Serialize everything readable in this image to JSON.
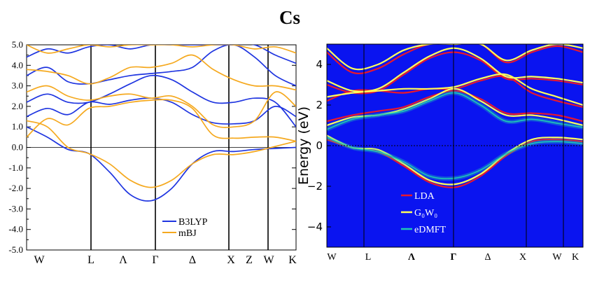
{
  "title": "Cs",
  "chart_data": [
    {
      "type": "line",
      "ylim": [
        -5.0,
        5.0
      ],
      "y_ticks": [
        "5.0",
        "4.0",
        "3.0",
        "2.0",
        "1.0",
        "0.0",
        "-1.0",
        "-2.0",
        "-3.0",
        "-4.0",
        "-5.0"
      ],
      "k_labels": [
        "W",
        "L",
        "Λ",
        "Γ",
        "Δ",
        "X",
        "Z",
        "W",
        "K"
      ],
      "fermi_level": 0.0,
      "legend": [
        {
          "name": "B3LYP",
          "color": "#1f35e0"
        },
        {
          "name": "mBJ",
          "color": "#f5a91f"
        }
      ],
      "series": [
        {
          "name": "B3LYP",
          "color": "#1f35e0",
          "bands": [
            [
              1.0,
              0.5,
              -0.1,
              -0.3,
              -1.2,
              -2.3,
              -2.6,
              -2.0,
              -0.8,
              -0.2,
              -0.2,
              -0.1,
              -0.05,
              0.0
            ],
            [
              1.5,
              1.9,
              1.6,
              2.2,
              2.1,
              2.3,
              2.4,
              2.2,
              1.6,
              1.2,
              1.15,
              1.3,
              2.0,
              1.5
            ],
            [
              2.2,
              2.6,
              2.2,
              2.2,
              2.6,
              3.1,
              3.5,
              3.3,
              2.7,
              2.2,
              2.2,
              2.4,
              2.2,
              1.0
            ],
            [
              3.5,
              3.9,
              3.2,
              3.1,
              3.3,
              3.5,
              3.6,
              3.7,
              3.9,
              4.7,
              5.0,
              4.4,
              3.5,
              3.0
            ],
            [
              4.4,
              4.8,
              4.6,
              4.9,
              5.0,
              4.8,
              5.0,
              5.0,
              5.0,
              5.0,
              5.0,
              5.0,
              4.5,
              4.1
            ]
          ]
        },
        {
          "name": "mBJ",
          "color": "#f5a91f",
          "bands": [
            [
              1.3,
              1.0,
              0.0,
              -0.3,
              -0.8,
              -1.6,
              -1.95,
              -1.6,
              -0.8,
              -0.35,
              -0.35,
              -0.2,
              0.05,
              0.3
            ],
            [
              0.5,
              1.4,
              1.1,
              1.9,
              2.0,
              2.2,
              2.3,
              2.3,
              1.9,
              0.6,
              0.45,
              0.5,
              0.5,
              0.3
            ],
            [
              2.7,
              3.0,
              2.5,
              2.3,
              2.5,
              2.6,
              2.4,
              2.5,
              2.0,
              1.1,
              1.0,
              1.3,
              2.7,
              2.0
            ],
            [
              3.8,
              3.7,
              3.5,
              3.1,
              3.4,
              3.9,
              3.9,
              4.1,
              4.5,
              3.8,
              3.3,
              3.0,
              3.0,
              2.8
            ],
            [
              5.0,
              4.6,
              4.8,
              5.0,
              4.9,
              5.0,
              5.0,
              5.0,
              4.9,
              5.0,
              5.0,
              4.8,
              4.9,
              4.6
            ]
          ]
        }
      ]
    },
    {
      "type": "line",
      "ylim": [
        -5,
        5
      ],
      "y_ticks": [
        "4",
        "2",
        "0",
        "−2",
        "−4"
      ],
      "ylabel": "Energy (eV)",
      "k_labels": [
        "W",
        "L",
        "Λ",
        "Γ",
        "Δ",
        "X",
        "W",
        "K"
      ],
      "fermi_level": 0,
      "background": "#0a14f0",
      "legend": [
        {
          "name": "LDA",
          "color": "#e8182d"
        },
        {
          "name": "G₀W₀",
          "color": "#ffff5a"
        },
        {
          "name": "eDMFT",
          "color": "#1fc8b4"
        }
      ],
      "series": [
        {
          "name": "LDA",
          "color": "#e8182d",
          "bands": [
            [
              0.3,
              -0.1,
              -0.3,
              -1.0,
              -1.8,
              -2.05,
              -1.5,
              -0.5,
              0.2,
              0.3,
              0.2
            ],
            [
              1.2,
              1.5,
              1.7,
              1.9,
              2.4,
              2.7,
              2.3,
              1.6,
              1.6,
              1.5,
              1.2
            ],
            [
              2.2,
              2.7,
              2.7,
              2.6,
              2.8,
              2.8,
              3.2,
              3.4,
              2.6,
              2.2,
              1.9
            ],
            [
              3.0,
              2.6,
              2.7,
              3.5,
              4.3,
              4.6,
              4.2,
              3.3,
              3.3,
              3.2,
              3.0
            ],
            [
              4.6,
              3.6,
              3.8,
              4.5,
              5.0,
              5.0,
              5.0,
              4.1,
              4.6,
              4.9,
              4.6
            ]
          ]
        },
        {
          "name": "G₀W₀",
          "color": "#ffff5a",
          "bands": [
            [
              0.5,
              -0.1,
              -0.2,
              -0.9,
              -1.7,
              -1.9,
              -1.4,
              -0.4,
              0.3,
              0.4,
              0.3
            ],
            [
              1.0,
              1.4,
              1.5,
              1.8,
              2.3,
              2.8,
              2.2,
              1.5,
              1.5,
              1.3,
              1.0
            ],
            [
              2.4,
              2.6,
              2.7,
              2.8,
              2.8,
              2.9,
              3.3,
              3.5,
              2.8,
              2.4,
              2.0
            ],
            [
              3.2,
              2.7,
              2.8,
              3.6,
              4.4,
              4.8,
              4.3,
              3.4,
              3.4,
              3.3,
              3.1
            ],
            [
              4.8,
              3.8,
              4.0,
              4.7,
              5.0,
              5.0,
              5.0,
              4.2,
              4.7,
              5.0,
              4.8
            ]
          ]
        },
        {
          "name": "eDMFT",
          "color": "#1fc8b4",
          "bands": [
            [
              0.4,
              -0.1,
              -0.3,
              -0.8,
              -1.5,
              -1.6,
              -1.2,
              -0.4,
              0.1,
              0.2,
              0.1
            ],
            [
              0.8,
              1.3,
              1.5,
              1.7,
              2.2,
              2.6,
              2.0,
              1.2,
              1.3,
              1.1,
              0.9
            ]
          ]
        }
      ]
    }
  ]
}
